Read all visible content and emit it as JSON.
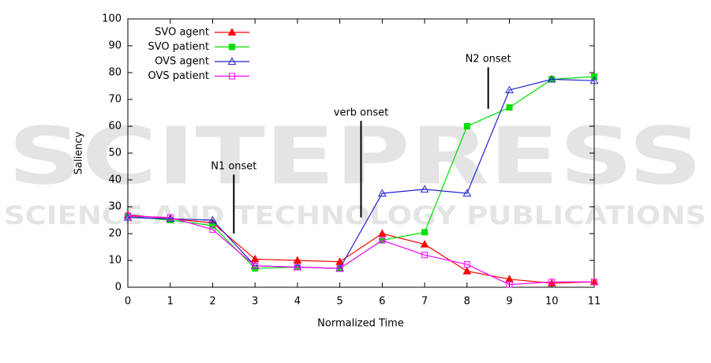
{
  "chart_data": {
    "type": "line",
    "xlabel": "Normalized Time",
    "ylabel": "Saliency",
    "x": [
      0,
      1,
      2,
      3,
      4,
      5,
      6,
      7,
      8,
      9,
      10,
      11
    ],
    "xlim": [
      0,
      11
    ],
    "xticks": [
      0,
      1,
      2,
      3,
      4,
      5,
      6,
      7,
      8,
      9,
      10,
      11
    ],
    "ylim": [
      0,
      100
    ],
    "yticks": [
      0,
      10,
      20,
      30,
      40,
      50,
      60,
      70,
      80,
      90,
      100
    ],
    "legend": "top-left",
    "series": [
      {
        "name": "SVO agent",
        "color": "#ff0000",
        "marker": "triangle",
        "filled": true,
        "values": [
          27,
          25.5,
          24,
          10.5,
          10,
          9.5,
          20,
          16,
          6,
          3,
          1.5,
          2
        ]
      },
      {
        "name": "SVO patient",
        "color": "#00e000",
        "marker": "square",
        "filled": true,
        "values": [
          26.5,
          25,
          23,
          7,
          7.5,
          7,
          17.5,
          20.5,
          60,
          67,
          77.5,
          78.5
        ]
      },
      {
        "name": "OVS agent",
        "color": "#2020d0",
        "marker": "triangle",
        "filled": false,
        "values": [
          26,
          25.5,
          25,
          8,
          7.5,
          7,
          35,
          36.5,
          35,
          73.5,
          77.5,
          77
        ]
      },
      {
        "name": "OVS patient",
        "color": "#ff00ff",
        "marker": "square",
        "filled": false,
        "values": [
          26.5,
          26,
          21.5,
          8,
          7.5,
          7,
          17.5,
          12,
          8.5,
          1,
          2,
          2
        ]
      }
    ],
    "annotations": [
      {
        "text": "N1 onset",
        "x": 2.5,
        "y_top": 42,
        "y_bottom": 20
      },
      {
        "text": "verb onset",
        "x": 5.5,
        "y_top": 62,
        "y_bottom": 26
      },
      {
        "text": "N2 onset",
        "x": 8.5,
        "y_top": 82,
        "y_bottom": 66.5
      }
    ]
  },
  "watermark": {
    "title": "SCITEPRESS",
    "subtitle": "SCIENCE AND TECHNOLOGY PUBLICATIONS"
  }
}
